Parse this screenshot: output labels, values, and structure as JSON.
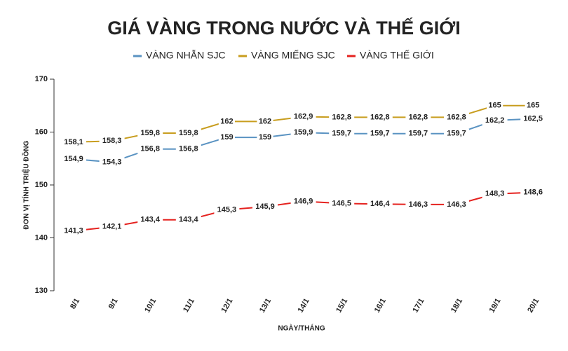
{
  "chart_data": {
    "type": "line",
    "title": "GIÁ VÀNG TRONG NƯỚC VÀ THẾ GIỚI",
    "x_label": "NGÀY/THÁNG",
    "y_label": "ĐƠN VỊ TÍNH TRIỆU ĐỒNG",
    "legend": "top",
    "categories": [
      "8/1",
      "9/1",
      "10/1",
      "11/1",
      "12/1",
      "13/1",
      "14/1",
      "15/1",
      "16/1",
      "17/1",
      "18/1",
      "19/1",
      "20/1"
    ],
    "ylim": [
      130,
      170
    ],
    "yticks": [
      130,
      140,
      150,
      160,
      170
    ],
    "series": [
      {
        "name": "VÀNG NHẪN SJC",
        "color": "#5a93c2",
        "values": [
          154.9,
          154.3,
          156.8,
          156.8,
          159,
          159,
          159.9,
          159.7,
          159.7,
          159.7,
          159.7,
          162.2,
          162.5
        ],
        "value_labels": [
          "154,9",
          "154,3",
          "156,8",
          "156,8",
          "159",
          "159",
          "159,9",
          "159,7",
          "159,7",
          "159,7",
          "159,7",
          "162,2",
          "162,5"
        ]
      },
      {
        "name": "VÀNG MIẾNG SJC",
        "color": "#c89d1e",
        "values": [
          158.1,
          158.3,
          159.8,
          159.8,
          162,
          162,
          162.9,
          162.8,
          162.8,
          162.8,
          162.8,
          165,
          165
        ],
        "value_labels": [
          "158,1",
          "158,3",
          "159,8",
          "159,8",
          "162",
          "162",
          "162,9",
          "162,8",
          "162,8",
          "162,8",
          "162,8",
          "165",
          "165"
        ]
      },
      {
        "name": "VÀNG THẾ GIỚI",
        "color": "#e5221f",
        "values": [
          141.3,
          142.1,
          143.4,
          143.4,
          145.3,
          145.9,
          146.9,
          146.5,
          146.4,
          146.3,
          146.3,
          148.3,
          148.6
        ],
        "value_labels": [
          "141,3",
          "142,1",
          "143,4",
          "143,4",
          "145,3",
          "145,9",
          "146,9",
          "146,5",
          "146,4",
          "146,3",
          "146,3",
          "148,3",
          "148,6"
        ]
      }
    ]
  }
}
